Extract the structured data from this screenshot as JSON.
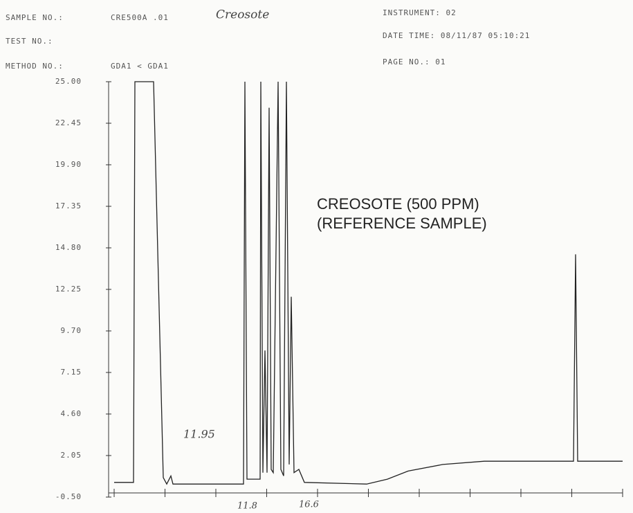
{
  "header": {
    "sample_label": "SAMPLE NO.:",
    "sample": "CRE500A .01",
    "sample_note": "Creosote",
    "test_label": "TEST NO.:",
    "method_label": "METHOD NO.:",
    "method": "GDA1  < GDA1",
    "instrument": "INSTRUMENT: 02",
    "datetime": "DATE TIME: 08/11/87 05:10:21",
    "page": "PAGE NO.: 01"
  },
  "chart_data": {
    "type": "line",
    "annotations": [
      "CREOSOTE (500 PPM)",
      "(REFERENCE SAMPLE)",
      "11.95",
      "11.8",
      "16.6"
    ],
    "series": [
      {
        "color": "#222",
        "x": [
          0,
          0.381,
          0.408,
          0.776,
          0.966,
          1.034,
          1.116,
          1.156,
          2.544,
          2.571,
          2.612,
          2.871,
          2.884,
          2.925,
          2.966,
          3.007,
          3.048,
          3.088,
          3.129,
          3.224,
          3.279,
          3.333,
          3.388,
          3.442,
          3.483,
          3.537,
          3.633,
          3.741,
          4.966,
          5.374,
          5.782,
          6.463,
          7.279,
          9.034,
          9.075,
          9.116,
          10
        ],
        "values": [
          0.4,
          0.4,
          25,
          25,
          0.7,
          0.3,
          0.8,
          0.3,
          0.3,
          25,
          0.6,
          0.6,
          25,
          1.0,
          8.5,
          1.0,
          23.4,
          1.2,
          1.0,
          25,
          1.2,
          0.8,
          25,
          1.5,
          11.8,
          1.0,
          1.2,
          0.4,
          0.3,
          0.6,
          1.1,
          1.5,
          1.7,
          1.7,
          14.4,
          1.7,
          1.7
        ]
      }
    ],
    "xlim": [
      0,
      10
    ],
    "xticks": [
      0,
      1,
      2,
      3,
      4,
      5,
      6,
      7,
      8,
      9,
      10
    ],
    "ylim": [
      -0.5,
      25
    ],
    "yticks": [
      {
        "value": 25,
        "label": "25.00"
      },
      {
        "value": 22.45,
        "label": "22.45"
      },
      {
        "value": 19.9,
        "label": "19.90"
      },
      {
        "value": 17.35,
        "label": "17.35"
      },
      {
        "value": 14.8,
        "label": "14.80"
      },
      {
        "value": 12.25,
        "label": "12.25"
      },
      {
        "value": 9.7,
        "label": "9.70"
      },
      {
        "value": 7.15,
        "label": "7.15"
      },
      {
        "value": 4.6,
        "label": "4.60"
      },
      {
        "value": 2.05,
        "label": "2.05"
      },
      {
        "value": -0.5,
        "label": "-0.50"
      }
    ]
  }
}
